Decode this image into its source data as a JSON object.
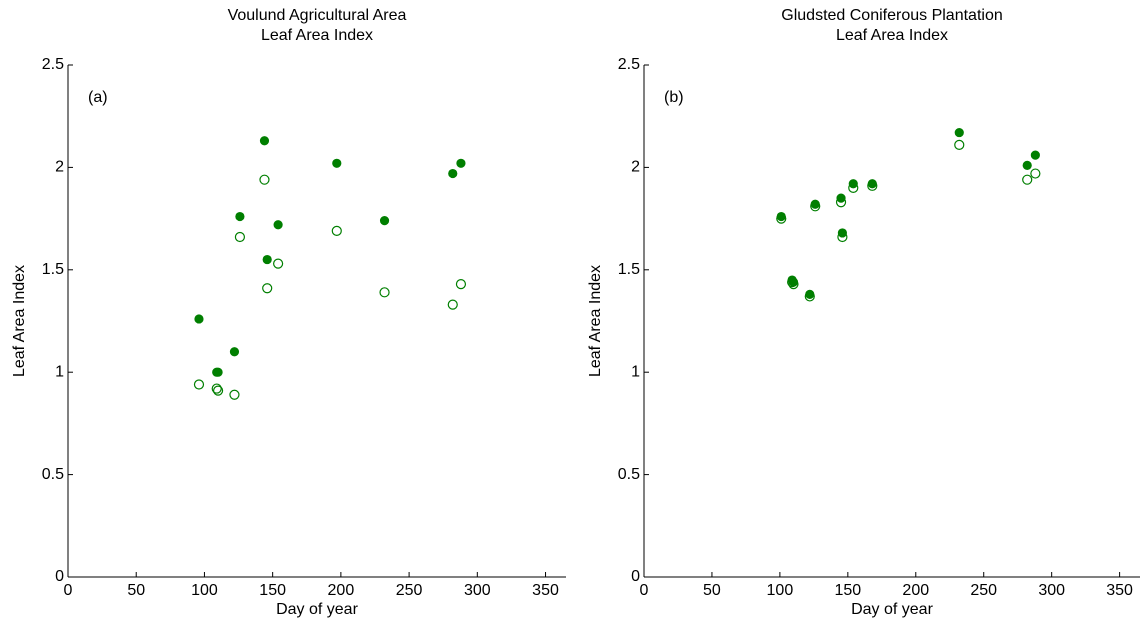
{
  "chart_data": [
    {
      "type": "scatter",
      "title": [
        "Voulund Agricultural Area",
        "Leaf Area Index"
      ],
      "annotation": "(a)",
      "x_label": "Day of year",
      "y_label": "Leaf Area Index",
      "xlim": [
        0,
        365
      ],
      "ylim": [
        0,
        2.5
      ],
      "xticks": [
        0,
        50,
        100,
        150,
        200,
        250,
        300,
        350
      ],
      "yticks": [
        0,
        0.5,
        1,
        1.5,
        2,
        2.5
      ],
      "series": [
        {
          "color": "#007f00",
          "marker": "filled",
          "x": [
            96,
            109,
            110,
            122,
            126,
            144,
            146,
            154,
            197,
            232,
            282,
            288
          ],
          "values": [
            1.26,
            1.0,
            1.0,
            1.1,
            1.76,
            2.13,
            1.55,
            1.72,
            2.02,
            1.74,
            1.97,
            2.02
          ]
        },
        {
          "color": "#007f00",
          "marker": "open",
          "x": [
            96,
            109,
            110,
            122,
            126,
            144,
            146,
            154,
            197,
            232,
            282,
            288
          ],
          "values": [
            0.94,
            0.92,
            0.91,
            0.89,
            1.66,
            1.94,
            1.41,
            1.53,
            1.69,
            1.39,
            1.33,
            1.43
          ]
        }
      ]
    },
    {
      "type": "scatter",
      "title": [
        "Gludsted Coniferous Plantation",
        "Leaf Area Index"
      ],
      "annotation": "(b)",
      "x_label": "Day of year",
      "y_label": "Leaf Area Index",
      "xlim": [
        0,
        365
      ],
      "ylim": [
        0,
        2.5
      ],
      "xticks": [
        0,
        50,
        100,
        150,
        200,
        250,
        300,
        350
      ],
      "yticks": [
        0,
        0.5,
        1,
        1.5,
        2,
        2.5
      ],
      "series": [
        {
          "color": "#007f00",
          "marker": "filled",
          "x": [
            101,
            109,
            110,
            122,
            126,
            145,
            146,
            154,
            168,
            232,
            282,
            288
          ],
          "values": [
            1.76,
            1.45,
            1.44,
            1.38,
            1.82,
            1.85,
            1.68,
            1.92,
            1.92,
            2.17,
            2.01,
            2.06
          ]
        },
        {
          "color": "#007f00",
          "marker": "open",
          "x": [
            101,
            109,
            110,
            122,
            126,
            145,
            146,
            154,
            168,
            232,
            282,
            288
          ],
          "values": [
            1.75,
            1.44,
            1.43,
            1.37,
            1.81,
            1.83,
            1.66,
            1.9,
            1.91,
            2.11,
            1.94,
            1.97
          ]
        }
      ]
    }
  ]
}
